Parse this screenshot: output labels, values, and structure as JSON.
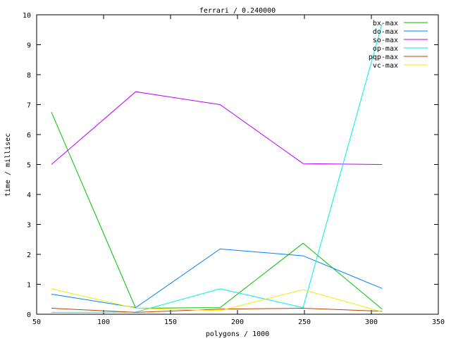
{
  "chart_data": {
    "type": "line",
    "title": "ferrari / 0.240000",
    "xlabel": "polygons / 1000",
    "ylabel": "time / millisec",
    "xlim": [
      50,
      350
    ],
    "ylim": [
      0,
      10
    ],
    "xticks": [
      50,
      100,
      150,
      200,
      250,
      300,
      350
    ],
    "yticks": [
      0,
      1,
      2,
      3,
      4,
      5,
      6,
      7,
      8,
      9,
      10
    ],
    "grid": false,
    "legend": "top-right",
    "x": [
      61,
      124,
      187,
      249,
      308
    ],
    "series": [
      {
        "name": "bx-max",
        "color": "#00c000",
        "values": [
          6.75,
          0.2,
          0.22,
          2.37,
          0.17
        ]
      },
      {
        "name": "do-max",
        "color": "#0080ff",
        "values": [
          0.67,
          0.22,
          2.18,
          1.95,
          0.86
        ]
      },
      {
        "name": "so-max",
        "color": "#c000ff",
        "values": [
          5.0,
          7.43,
          7.0,
          5.03,
          5.0
        ]
      },
      {
        "name": "op-max",
        "color": "#00eeee",
        "values": [
          0.06,
          0.07,
          0.85,
          0.22,
          9.7
        ]
      },
      {
        "name": "pqp-max",
        "color": "#c04000",
        "values": [
          0.2,
          0.06,
          0.17,
          0.2,
          0.1
        ]
      },
      {
        "name": "vc-max",
        "color": "#eeee00",
        "values": [
          0.85,
          0.2,
          0.12,
          0.82,
          0.08
        ]
      }
    ]
  }
}
